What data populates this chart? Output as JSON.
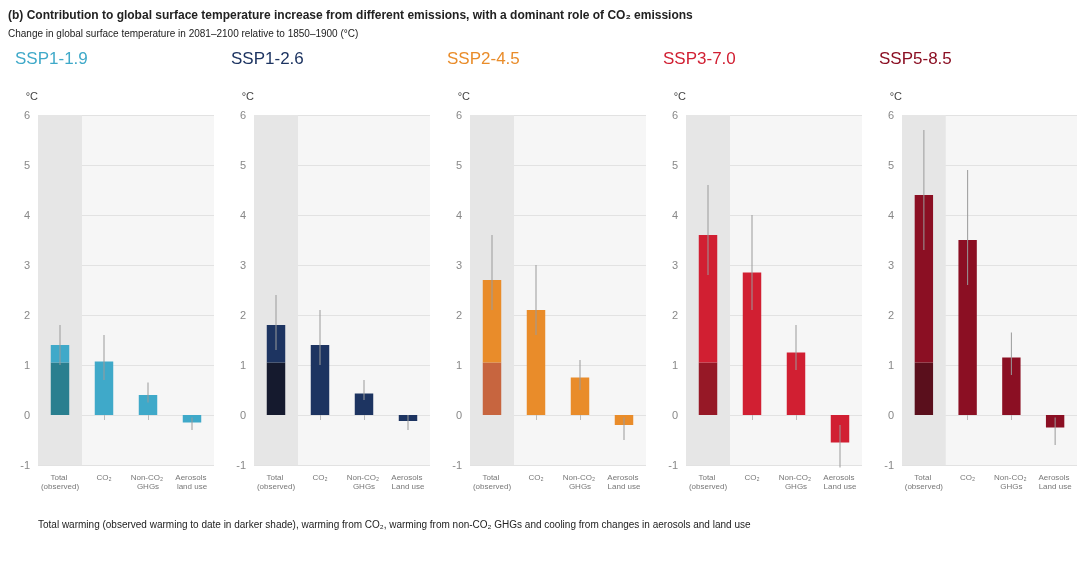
{
  "chart_data": [
    {
      "type": "bar",
      "title": "SSP1-1.9",
      "ylabel": "°C",
      "categories": [
        "Total (observed)",
        "CO₂",
        "Non-CO₂ GHGs",
        "Aerosols land use"
      ],
      "stacked": true,
      "ylim": [
        -1,
        6
      ],
      "yticks": [
        -1,
        0,
        1,
        2,
        3,
        4,
        5,
        6
      ],
      "grid": "y",
      "bands": [
        {
          "axis": "x",
          "from": "Total (observed)",
          "to": "Total (observed)",
          "color": "#e6e6e6"
        }
      ],
      "series": [
        {
          "color": "#2a7f8f",
          "values": [
            1.05,
            null,
            null,
            null
          ]
        },
        {
          "color": "#3fa9c9",
          "values": [
            0.35,
            1.07,
            0.4,
            -0.15
          ],
          "errors": [
            [
              1.0,
              1.8
            ],
            [
              0.7,
              1.6
            ],
            [
              0.25,
              0.65
            ],
            [
              -0.3,
              -0.05
            ]
          ]
        }
      ],
      "annotations": [
        "(b) Contribution to global surface temperature increase from different emissions, with a dominant role of CO₂ emissions",
        "Change in global surface temperature in 2081–2100 relative to 1850–1900 (°C)",
        "Total warming (observed warming to date in darker shade), warming from CO₂, warming from non-CO₂ GHGs and cooling from changes in aerosols and land use"
      ]
    },
    {
      "type": "bar",
      "title": "SSP1-2.6",
      "ylabel": "°C",
      "categories": [
        "Total (observed)",
        "CO₂",
        "Non-CO₂ GHGs",
        "Aerosols Land use"
      ],
      "stacked": true,
      "ylim": [
        -1,
        6
      ],
      "yticks": [
        -1,
        0,
        1,
        2,
        3,
        4,
        5,
        6
      ],
      "grid": "y",
      "bands": [
        {
          "axis": "x",
          "from": "Total (observed)",
          "to": "Total (observed)",
          "color": "#e6e6e6"
        }
      ],
      "series": [
        {
          "color": "#151a2e",
          "values": [
            1.05,
            null,
            null,
            null
          ]
        },
        {
          "color": "#1d3461",
          "values": [
            0.75,
            1.4,
            0.43,
            -0.12
          ],
          "errors": [
            [
              1.3,
              2.4
            ],
            [
              1.0,
              2.1
            ],
            [
              0.3,
              0.7
            ],
            [
              -0.3,
              0
            ]
          ]
        }
      ]
    },
    {
      "type": "bar",
      "title": "SSP2-4.5",
      "ylabel": "°C",
      "categories": [
        "Total (observed)",
        "CO₂",
        "Non-CO₂ GHGs",
        "Aerosols Land use"
      ],
      "stacked": true,
      "ylim": [
        -1,
        6
      ],
      "yticks": [
        -1,
        0,
        1,
        2,
        3,
        4,
        5,
        6
      ],
      "grid": "y",
      "bands": [
        {
          "axis": "x",
          "from": "Total (observed)",
          "to": "Total (observed)",
          "color": "#e6e6e6"
        }
      ],
      "series": [
        {
          "color": "#c7653f",
          "values": [
            1.05,
            null,
            null,
            null
          ]
        },
        {
          "color": "#e98c2a",
          "values": [
            1.65,
            2.1,
            0.75,
            -0.2
          ],
          "errors": [
            [
              2.1,
              3.6
            ],
            [
              1.6,
              3.0
            ],
            [
              0.5,
              1.1
            ],
            [
              -0.5,
              -0.05
            ]
          ]
        }
      ]
    },
    {
      "type": "bar",
      "title": "SSP3-7.0",
      "ylabel": "°C",
      "categories": [
        "Total (observed)",
        "CO₂",
        "Non-CO₂ GHGs",
        "Aerosols Land use"
      ],
      "stacked": true,
      "ylim": [
        -1,
        6
      ],
      "yticks": [
        -1,
        0,
        1,
        2,
        3,
        4,
        5,
        6
      ],
      "grid": "y",
      "bands": [
        {
          "axis": "x",
          "from": "Total (observed)",
          "to": "Total (observed)",
          "color": "#e6e6e6"
        }
      ],
      "series": [
        {
          "color": "#961826",
          "values": [
            1.05,
            null,
            null,
            null
          ]
        },
        {
          "color": "#d11f32",
          "values": [
            2.55,
            2.85,
            1.25,
            -0.55
          ],
          "errors": [
            [
              2.8,
              4.6
            ],
            [
              2.1,
              4.0
            ],
            [
              0.9,
              1.8
            ],
            [
              -1.05,
              -0.2
            ]
          ]
        }
      ]
    },
    {
      "type": "bar",
      "title": "SSP5-8.5",
      "ylabel": "°C",
      "categories": [
        "Total (observed)",
        "CO₂",
        "Non-CO₂ GHGs",
        "Aerosols Land use"
      ],
      "stacked": true,
      "ylim": [
        -1,
        6
      ],
      "yticks": [
        -1,
        0,
        1,
        2,
        3,
        4,
        5,
        6
      ],
      "grid": "y",
      "bands": [
        {
          "axis": "x",
          "from": "Total (observed)",
          "to": "Total (observed)",
          "color": "#e6e6e6"
        }
      ],
      "series": [
        {
          "color": "#5a0f1c",
          "values": [
            1.05,
            null,
            null,
            null
          ]
        },
        {
          "color": "#8b0f23",
          "values": [
            3.35,
            3.5,
            1.15,
            -0.25
          ],
          "errors": [
            [
              3.3,
              5.7
            ],
            [
              2.6,
              4.9
            ],
            [
              0.8,
              1.65
            ],
            [
              -0.6,
              -0.05
            ]
          ]
        }
      ]
    }
  ]
}
